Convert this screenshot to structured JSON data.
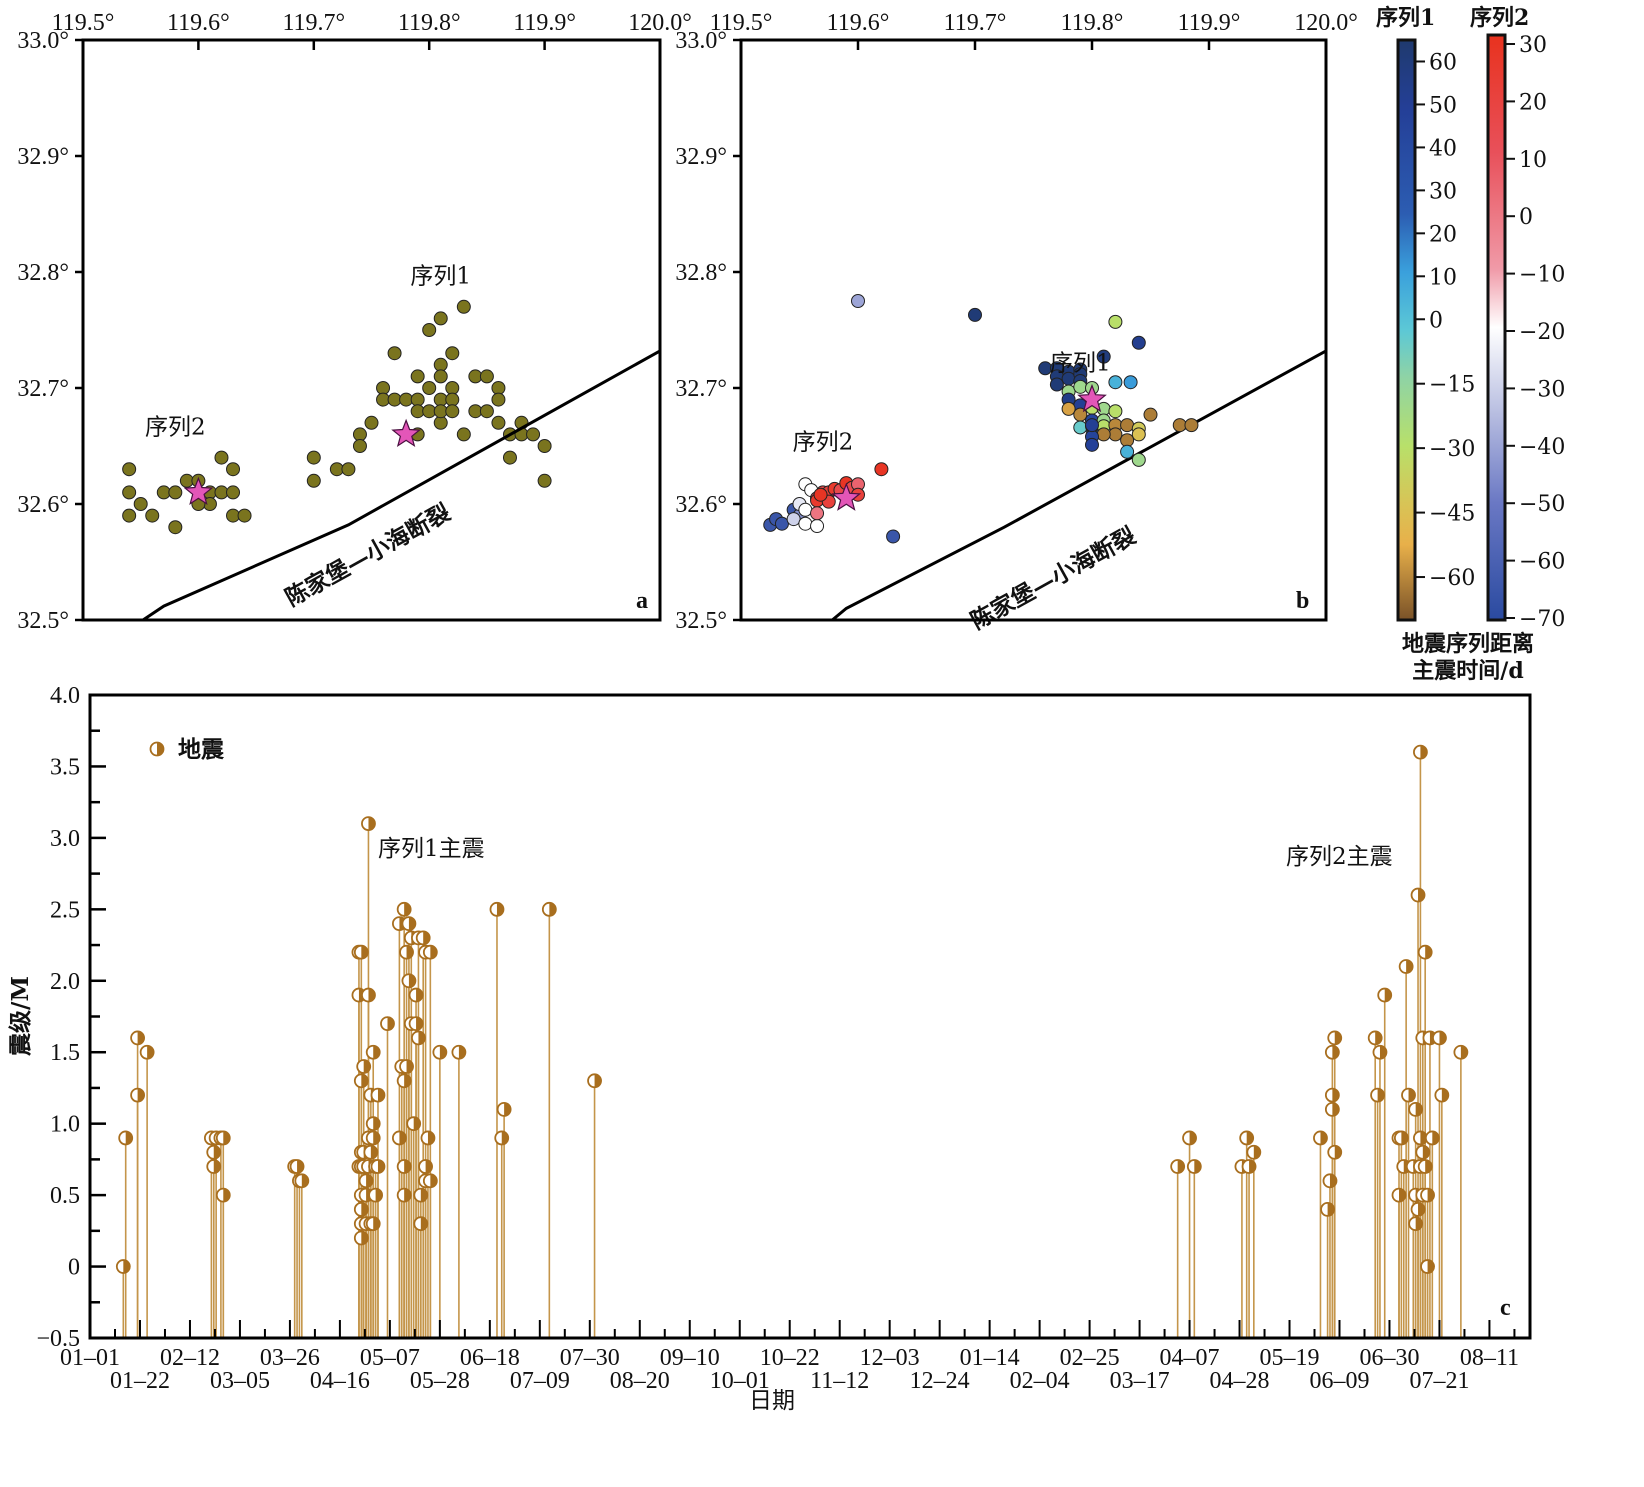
{
  "chart_data": [
    {
      "type": "scatter",
      "panel_label": "a",
      "title": "",
      "x_ticks": [
        "119.5°",
        "119.6°",
        "119.7°",
        "119.8°",
        "119.9°",
        "120.0°"
      ],
      "y_ticks": [
        "32.5°",
        "32.6°",
        "32.7°",
        "32.8°",
        "32.9°",
        "33.0°"
      ],
      "xlim": [
        119.5,
        120.0
      ],
      "ylim": [
        32.5,
        33.0
      ],
      "grid": false,
      "marker_color": "#7a741e",
      "star_color": "#e356b8",
      "fault_label": "陈家堡—小海断裂",
      "fault_line": [
        [
          119.552,
          32.5
        ],
        [
          119.57,
          32.512
        ],
        [
          119.73,
          32.582
        ],
        [
          120.0,
          32.732
        ]
      ],
      "annotations": [
        {
          "text": "序列1",
          "x": 119.81,
          "y": 32.79
        },
        {
          "text": "序列2",
          "x": 119.58,
          "y": 32.66
        }
      ],
      "mainshocks": [
        {
          "name": "序列1主震",
          "x": 119.78,
          "y": 32.66
        },
        {
          "name": "序列2主震",
          "x": 119.6,
          "y": 32.61
        }
      ],
      "points": [
        [
          119.54,
          32.63
        ],
        [
          119.54,
          32.61
        ],
        [
          119.54,
          32.59
        ],
        [
          119.55,
          32.6
        ],
        [
          119.56,
          32.59
        ],
        [
          119.57,
          32.61
        ],
        [
          119.58,
          32.61
        ],
        [
          119.58,
          32.58
        ],
        [
          119.59,
          32.62
        ],
        [
          119.6,
          32.62
        ],
        [
          119.61,
          32.61
        ],
        [
          119.61,
          32.6
        ],
        [
          119.62,
          32.64
        ],
        [
          119.62,
          32.61
        ],
        [
          119.63,
          32.63
        ],
        [
          119.63,
          32.61
        ],
        [
          119.63,
          32.59
        ],
        [
          119.64,
          32.59
        ],
        [
          119.6,
          32.6
        ],
        [
          119.7,
          32.64
        ],
        [
          119.7,
          32.62
        ],
        [
          119.72,
          32.63
        ],
        [
          119.73,
          32.63
        ],
        [
          119.74,
          32.66
        ],
        [
          119.74,
          32.65
        ],
        [
          119.75,
          32.67
        ],
        [
          119.76,
          32.7
        ],
        [
          119.76,
          32.69
        ],
        [
          119.77,
          32.69
        ],
        [
          119.77,
          32.73
        ],
        [
          119.78,
          32.69
        ],
        [
          119.79,
          32.71
        ],
        [
          119.79,
          32.69
        ],
        [
          119.79,
          32.68
        ],
        [
          119.8,
          32.75
        ],
        [
          119.8,
          32.7
        ],
        [
          119.8,
          32.68
        ],
        [
          119.81,
          32.76
        ],
        [
          119.81,
          32.72
        ],
        [
          119.81,
          32.71
        ],
        [
          119.81,
          32.69
        ],
        [
          119.81,
          32.67
        ],
        [
          119.81,
          32.68
        ],
        [
          119.82,
          32.73
        ],
        [
          119.82,
          32.7
        ],
        [
          119.82,
          32.69
        ],
        [
          119.82,
          32.68
        ],
        [
          119.83,
          32.77
        ],
        [
          119.83,
          32.66
        ],
        [
          119.84,
          32.71
        ],
        [
          119.84,
          32.68
        ],
        [
          119.85,
          32.71
        ],
        [
          119.85,
          32.68
        ],
        [
          119.86,
          32.7
        ],
        [
          119.86,
          32.69
        ],
        [
          119.86,
          32.67
        ],
        [
          119.87,
          32.66
        ],
        [
          119.87,
          32.64
        ],
        [
          119.88,
          32.67
        ],
        [
          119.88,
          32.66
        ],
        [
          119.89,
          32.66
        ],
        [
          119.9,
          32.65
        ],
        [
          119.9,
          32.62
        ],
        [
          119.79,
          32.66
        ]
      ]
    },
    {
      "type": "scatter",
      "panel_label": "b",
      "title": "",
      "x_ticks": [
        "119.5°",
        "119.6°",
        "119.7°",
        "119.8°",
        "119.9°",
        "120.0°"
      ],
      "y_ticks": [
        "32.5°",
        "32.6°",
        "32.7°",
        "32.8°",
        "32.9°",
        "33.0°"
      ],
      "xlim": [
        119.5,
        120.0
      ],
      "ylim": [
        32.5,
        33.0
      ],
      "grid": false,
      "fault_label": "陈家堡—小海断裂",
      "fault_line": [
        [
          119.578,
          32.5
        ],
        [
          119.59,
          32.51
        ],
        [
          119.725,
          32.58
        ],
        [
          120.0,
          32.732
        ]
      ],
      "annotations": [
        {
          "text": "序列1",
          "x": 119.79,
          "y": 32.715
        },
        {
          "text": "序列2",
          "x": 119.57,
          "y": 32.647
        }
      ],
      "mainshocks": [
        {
          "name": "序列1主震",
          "x": 119.8,
          "y": 32.69
        },
        {
          "name": "序列2主震",
          "x": 119.59,
          "y": 32.605
        }
      ],
      "colorbar_seq1": {
        "label": "序列1",
        "ticks": [
          60,
          50,
          40,
          30,
          20,
          10,
          0,
          -15,
          -30,
          -45,
          -60
        ],
        "range": [
          -70,
          65
        ]
      },
      "colorbar_seq2": {
        "label": "序列2",
        "ticks": [
          30,
          20,
          10,
          0,
          -10,
          -20,
          -30,
          -40,
          -50,
          -60,
          -70
        ],
        "range": [
          -70,
          30
        ]
      },
      "colorbar_title": [
        "地震序列距离",
        "主震时间/d"
      ],
      "points_seq1": [
        [
          119.82,
          32.757,
          -30
        ],
        [
          119.84,
          32.739,
          52
        ],
        [
          119.81,
          32.727,
          60
        ],
        [
          119.7,
          32.763,
          62
        ],
        [
          119.76,
          32.717,
          62
        ],
        [
          119.77,
          32.717,
          62
        ],
        [
          119.78,
          32.714,
          62
        ],
        [
          119.79,
          32.716,
          62
        ],
        [
          119.77,
          32.71,
          62
        ],
        [
          119.78,
          32.708,
          62
        ],
        [
          119.79,
          32.712,
          62
        ],
        [
          119.77,
          32.703,
          62
        ],
        [
          119.79,
          32.706,
          62
        ],
        [
          119.78,
          32.697,
          -20
        ],
        [
          119.79,
          32.701,
          -20
        ],
        [
          119.8,
          32.7,
          -20
        ],
        [
          119.78,
          32.69,
          55
        ],
        [
          119.79,
          32.685,
          50
        ],
        [
          119.78,
          32.682,
          -55
        ],
        [
          119.8,
          32.683,
          -30
        ],
        [
          119.81,
          32.682,
          -20
        ],
        [
          119.82,
          32.68,
          -30
        ],
        [
          119.79,
          32.677,
          -60
        ],
        [
          119.8,
          32.672,
          45
        ],
        [
          119.81,
          32.672,
          -20
        ],
        [
          119.82,
          32.705,
          5
        ],
        [
          119.833,
          32.705,
          12
        ],
        [
          119.8,
          32.665,
          15
        ],
        [
          119.79,
          32.666,
          -5
        ],
        [
          119.8,
          32.667,
          8
        ],
        [
          119.81,
          32.667,
          -30
        ],
        [
          119.82,
          32.668,
          -60
        ],
        [
          119.83,
          32.668,
          -62
        ],
        [
          119.84,
          32.665,
          -40
        ],
        [
          119.84,
          32.66,
          -45
        ],
        [
          119.82,
          32.66,
          -62
        ],
        [
          119.81,
          32.66,
          -62
        ],
        [
          119.83,
          32.655,
          -62
        ],
        [
          119.8,
          32.658,
          45
        ],
        [
          119.8,
          32.651,
          48
        ],
        [
          119.85,
          32.677,
          -62
        ],
        [
          119.875,
          32.668,
          -62
        ],
        [
          119.885,
          32.668,
          -62
        ],
        [
          119.83,
          32.645,
          5
        ],
        [
          119.84,
          32.638,
          -20
        ],
        [
          119.8,
          32.668,
          50
        ]
      ],
      "points_seq2": [
        [
          119.6,
          32.775,
          -40
        ],
        [
          119.62,
          32.63,
          28
        ],
        [
          119.63,
          32.572,
          -65
        ],
        [
          119.525,
          32.582,
          -65
        ],
        [
          119.53,
          32.587,
          -65
        ],
        [
          119.535,
          32.583,
          -65
        ],
        [
          119.545,
          32.595,
          -65
        ],
        [
          119.55,
          32.59,
          -45
        ],
        [
          119.545,
          32.587,
          -30
        ],
        [
          119.55,
          32.6,
          -25
        ],
        [
          119.555,
          32.595,
          -20
        ],
        [
          119.555,
          32.583,
          -20
        ],
        [
          119.565,
          32.581,
          -20
        ],
        [
          119.555,
          32.617,
          -20
        ],
        [
          119.56,
          32.612,
          -20
        ],
        [
          119.565,
          32.605,
          10
        ],
        [
          119.57,
          32.61,
          15
        ],
        [
          119.575,
          32.61,
          20
        ],
        [
          119.58,
          32.613,
          25
        ],
        [
          119.585,
          32.612,
          15
        ],
        [
          119.565,
          32.603,
          25
        ],
        [
          119.575,
          32.602,
          20
        ],
        [
          119.568,
          32.608,
          28
        ],
        [
          119.565,
          32.592,
          0
        ],
        [
          119.59,
          32.618,
          28
        ],
        [
          119.595,
          32.614,
          15
        ],
        [
          119.6,
          32.617,
          5
        ],
        [
          119.6,
          32.608,
          20
        ]
      ]
    },
    {
      "type": "stem",
      "panel_label": "c",
      "title": "",
      "xlabel": "日期",
      "ylabel": "震级/M",
      "ylim": [
        -0.5,
        4.0
      ],
      "y_ticks": [
        "-0.5",
        "0",
        "0.5",
        "1.0",
        "1.5",
        "2.0",
        "2.5",
        "3.0",
        "3.5",
        "4.0"
      ],
      "x_ticks_row1": [
        "01-01",
        "02-12",
        "03-26",
        "05-07",
        "06-18",
        "07-30",
        "09-10",
        "10-22",
        "12-03",
        "01-14",
        "02-25",
        "04-07",
        "05-19",
        "06-30",
        "08-11"
      ],
      "x_ticks_row2": [
        "01-22",
        "03-05",
        "04-16",
        "05-28",
        "07-09",
        "08-20",
        "10-01",
        "11-12",
        "12-24",
        "02-04",
        "03-17",
        "04-28",
        "06-09",
        "07-21"
      ],
      "x_range_days": [
        0,
        605
      ],
      "legend": {
        "label": "地震",
        "position": "top-left"
      },
      "annotations": [
        {
          "text": "序列1主震",
          "day": 117,
          "mag": 2.9
        },
        {
          "text": "序列2主震",
          "day": 546,
          "mag": 2.85
        }
      ],
      "marker_color": "#a86e1e",
      "stem_color": "#c4954a",
      "events": [
        [
          14,
          0.0
        ],
        [
          15,
          0.9
        ],
        [
          20,
          1.6
        ],
        [
          20,
          1.2
        ],
        [
          24,
          1.5
        ],
        [
          51,
          0.9
        ],
        [
          52,
          0.8
        ],
        [
          52,
          0.7
        ],
        [
          53,
          0.9
        ],
        [
          55,
          0.9
        ],
        [
          56,
          0.9
        ],
        [
          56,
          0.5
        ],
        [
          86,
          0.7
        ],
        [
          87,
          0.7
        ],
        [
          88,
          0.6
        ],
        [
          89,
          0.6
        ],
        [
          113,
          0.7
        ],
        [
          113,
          1.9
        ],
        [
          113,
          2.2
        ],
        [
          114,
          2.2
        ],
        [
          114,
          1.3
        ],
        [
          114,
          0.8
        ],
        [
          114,
          0.7
        ],
        [
          114,
          0.5
        ],
        [
          114,
          0.4
        ],
        [
          114,
          0.3
        ],
        [
          114,
          0.2
        ],
        [
          115,
          0.7
        ],
        [
          115,
          1.4
        ],
        [
          115,
          0.8
        ],
        [
          116,
          0.6
        ],
        [
          116,
          0.5
        ],
        [
          116,
          0.3
        ],
        [
          117,
          3.1
        ],
        [
          117,
          1.9
        ],
        [
          117,
          0.9
        ],
        [
          117,
          0.7
        ],
        [
          118,
          1.2
        ],
        [
          118,
          0.8
        ],
        [
          118,
          0.3
        ],
        [
          119,
          1.5
        ],
        [
          119,
          1.0
        ],
        [
          119,
          0.9
        ],
        [
          119,
          0.3
        ],
        [
          120,
          0.7
        ],
        [
          120,
          0.5
        ],
        [
          121,
          1.2
        ],
        [
          121,
          0.7
        ],
        [
          125,
          1.7
        ],
        [
          130,
          2.4
        ],
        [
          130,
          0.9
        ],
        [
          131,
          1.4
        ],
        [
          132,
          2.5
        ],
        [
          132,
          1.3
        ],
        [
          132,
          0.7
        ],
        [
          132,
          0.5
        ],
        [
          133,
          2.2
        ],
        [
          133,
          1.4
        ],
        [
          134,
          2.0
        ],
        [
          134,
          2.4
        ],
        [
          135,
          2.3
        ],
        [
          135,
          1.7
        ],
        [
          136,
          1.0
        ],
        [
          137,
          1.9
        ],
        [
          137,
          1.7
        ],
        [
          138,
          2.3
        ],
        [
          138,
          1.6
        ],
        [
          139,
          0.5
        ],
        [
          139,
          0.3
        ],
        [
          140,
          2.3
        ],
        [
          141,
          2.2
        ],
        [
          141,
          0.7
        ],
        [
          141,
          0.6
        ],
        [
          142,
          0.9
        ],
        [
          143,
          2.2
        ],
        [
          143,
          0.6
        ],
        [
          147,
          1.5
        ],
        [
          155,
          1.5
        ],
        [
          171,
          2.5
        ],
        [
          173,
          0.9
        ],
        [
          174,
          1.1
        ],
        [
          193,
          2.5
        ],
        [
          212,
          1.3
        ],
        [
          457,
          0.7
        ],
        [
          462,
          0.9
        ],
        [
          464,
          0.7
        ],
        [
          484,
          0.7
        ],
        [
          486,
          0.9
        ],
        [
          487,
          0.7
        ],
        [
          489,
          0.8
        ],
        [
          517,
          0.9
        ],
        [
          520,
          0.4
        ],
        [
          521,
          0.6
        ],
        [
          522,
          1.5
        ],
        [
          522,
          1.2
        ],
        [
          522,
          1.1
        ],
        [
          523,
          1.6
        ],
        [
          523,
          0.8
        ],
        [
          540,
          1.6
        ],
        [
          541,
          1.2
        ],
        [
          542,
          1.5
        ],
        [
          544,
          1.9
        ],
        [
          550,
          0.9
        ],
        [
          550,
          0.5
        ],
        [
          551,
          0.9
        ],
        [
          552,
          0.7
        ],
        [
          553,
          2.1
        ],
        [
          554,
          1.2
        ],
        [
          556,
          0.7
        ],
        [
          557,
          0.5
        ],
        [
          557,
          0.3
        ],
        [
          557,
          1.1
        ],
        [
          558,
          2.6
        ],
        [
          558,
          0.4
        ],
        [
          559,
          0.7
        ],
        [
          559,
          3.6
        ],
        [
          559,
          0.9
        ],
        [
          560,
          1.6
        ],
        [
          560,
          0.8
        ],
        [
          560,
          0.5
        ],
        [
          561,
          2.2
        ],
        [
          561,
          0.7
        ],
        [
          562,
          0.5
        ],
        [
          562,
          0.0
        ],
        [
          563,
          1.6
        ],
        [
          564,
          0.9
        ],
        [
          567,
          1.6
        ],
        [
          568,
          1.2
        ],
        [
          576,
          1.5
        ]
      ]
    }
  ]
}
